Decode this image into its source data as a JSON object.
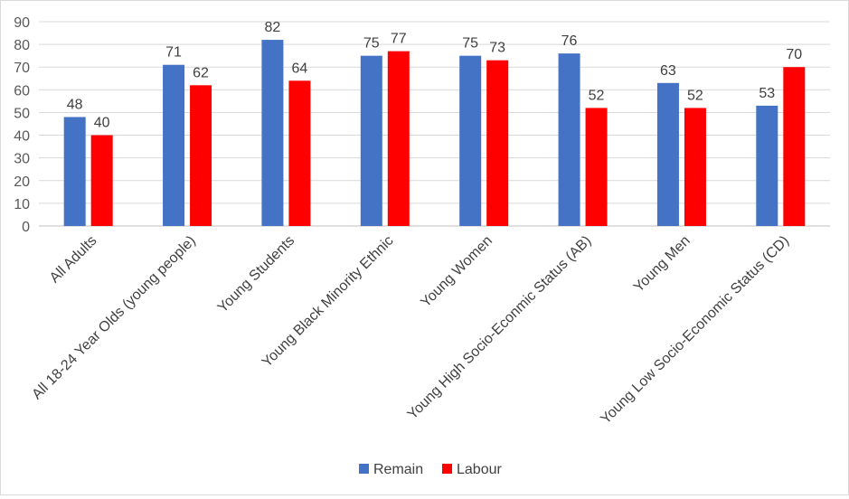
{
  "chart_data": {
    "type": "bar",
    "categories": [
      "All Adults",
      "All 18-24 Year Olds (young people)",
      "Young Students",
      "Young Black Minority Ethnic",
      "Young Women",
      "Young High Socio-Econmic Status (AB)",
      "Young Men",
      "Young Low Socio-Economic Status (CD)"
    ],
    "series": [
      {
        "name": "Remain",
        "color": "#4472c4",
        "values": [
          48,
          71,
          82,
          75,
          75,
          76,
          63,
          53
        ]
      },
      {
        "name": "Labour",
        "color": "#ff0000",
        "values": [
          40,
          62,
          64,
          77,
          73,
          52,
          52,
          70
        ]
      }
    ],
    "ylim": [
      0,
      90
    ],
    "yticks": [
      0,
      10,
      20,
      30,
      40,
      50,
      60,
      70,
      80,
      90
    ],
    "grid": true,
    "legend": "bottom",
    "title": "",
    "xlabel": "",
    "ylabel": ""
  }
}
